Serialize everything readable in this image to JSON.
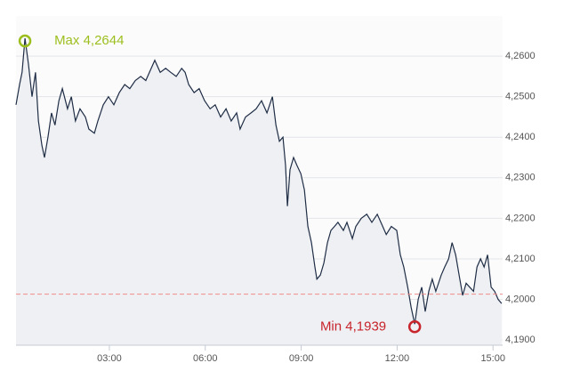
{
  "chart_data": {
    "type": "line",
    "x": [
      0.08,
      0.19,
      0.27,
      0.36,
      0.47,
      0.58,
      0.69,
      0.78,
      0.89,
      0.97,
      1.08,
      1.19,
      1.3,
      1.42,
      1.53,
      1.69,
      1.81,
      1.94,
      2.08,
      2.25,
      2.36,
      2.53,
      2.64,
      2.81,
      2.97,
      3.14,
      3.31,
      3.48,
      3.64,
      3.81,
      3.98,
      4.14,
      4.31,
      4.42,
      4.59,
      4.76,
      4.92,
      5.09,
      5.26,
      5.37,
      5.48,
      5.65,
      5.81,
      5.98,
      6.15,
      6.31,
      6.48,
      6.65,
      6.81,
      6.98,
      7.09,
      7.26,
      7.43,
      7.59,
      7.76,
      7.93,
      8.1,
      8.21,
      8.32,
      8.43,
      8.51,
      8.57,
      8.65,
      8.76,
      8.87,
      8.99,
      9.1,
      9.21,
      9.32,
      9.43,
      9.49,
      9.6,
      9.71,
      9.82,
      9.93,
      10.04,
      10.15,
      10.32,
      10.43,
      10.6,
      10.71,
      10.88,
      11.05,
      11.21,
      11.38,
      11.55,
      11.66,
      11.82,
      11.99,
      12.1,
      12.21,
      12.33,
      12.44,
      12.55,
      12.66,
      12.77,
      12.88,
      12.99,
      13.1,
      13.21,
      13.38,
      13.49,
      13.61,
      13.72,
      13.83,
      13.94,
      14.05,
      14.16,
      14.27,
      14.39,
      14.5,
      14.61,
      14.72,
      14.83,
      14.94,
      15.05,
      15.16,
      15.27
    ],
    "series": [
      {
        "color": "#1f2d45",
        "values": [
          4.248,
          4.253,
          4.256,
          4.2644,
          4.258,
          4.25,
          4.256,
          4.244,
          4.238,
          4.235,
          4.24,
          4.246,
          4.243,
          4.249,
          4.252,
          4.247,
          4.25,
          4.244,
          4.247,
          4.245,
          4.242,
          4.241,
          4.244,
          4.248,
          4.25,
          4.248,
          4.251,
          4.253,
          4.252,
          4.254,
          4.255,
          4.254,
          4.257,
          4.259,
          4.256,
          4.257,
          4.256,
          4.255,
          4.257,
          4.256,
          4.253,
          4.251,
          4.252,
          4.249,
          4.247,
          4.248,
          4.245,
          4.247,
          4.244,
          4.246,
          4.242,
          4.245,
          4.246,
          4.247,
          4.249,
          4.246,
          4.25,
          4.243,
          4.239,
          4.24,
          4.233,
          4.223,
          4.232,
          4.235,
          4.233,
          4.231,
          4.227,
          4.218,
          4.214,
          4.208,
          4.205,
          4.206,
          4.209,
          4.214,
          4.217,
          4.218,
          4.219,
          4.217,
          4.219,
          4.215,
          4.218,
          4.22,
          4.221,
          4.219,
          4.221,
          4.218,
          4.216,
          4.218,
          4.217,
          4.211,
          4.208,
          4.203,
          4.198,
          4.1939,
          4.2,
          4.203,
          4.197,
          4.202,
          4.205,
          4.202,
          4.206,
          4.208,
          4.21,
          4.214,
          4.211,
          4.206,
          4.201,
          4.204,
          4.203,
          4.202,
          4.208,
          4.21,
          4.208,
          4.211,
          4.203,
          4.202,
          4.2,
          4.199
        ]
      }
    ],
    "xlim": [
      0.08,
      15.3
    ],
    "ylim": [
      4.1887,
      4.2699
    ],
    "xticks": [
      {
        "value": 3,
        "label": "03:00"
      },
      {
        "value": 6,
        "label": "06:00"
      },
      {
        "value": 9,
        "label": "09:00"
      },
      {
        "value": 12,
        "label": "12:00"
      },
      {
        "value": 15,
        "label": "15:00"
      }
    ],
    "yticks": [
      {
        "value": 4.19,
        "label": "4,1900"
      },
      {
        "value": 4.2,
        "label": "4,2000"
      },
      {
        "value": 4.21,
        "label": "4,2100"
      },
      {
        "value": 4.22,
        "label": "4,2200"
      },
      {
        "value": 4.23,
        "label": "4,2300"
      },
      {
        "value": 4.24,
        "label": "4,2400"
      },
      {
        "value": 4.25,
        "label": "4,2500"
      },
      {
        "value": 4.26,
        "label": "4,2600"
      }
    ],
    "grid": true,
    "reference_line": {
      "value": 4.2013,
      "color": "#f08a8a"
    },
    "annotations": [
      {
        "label": "Max 4,2644",
        "x": 0.36,
        "y": 4.2644,
        "color": "#9dbf1e"
      },
      {
        "label": "Min 4,1939",
        "x": 12.55,
        "y": 4.1939,
        "color": "#c8242c"
      }
    ]
  }
}
